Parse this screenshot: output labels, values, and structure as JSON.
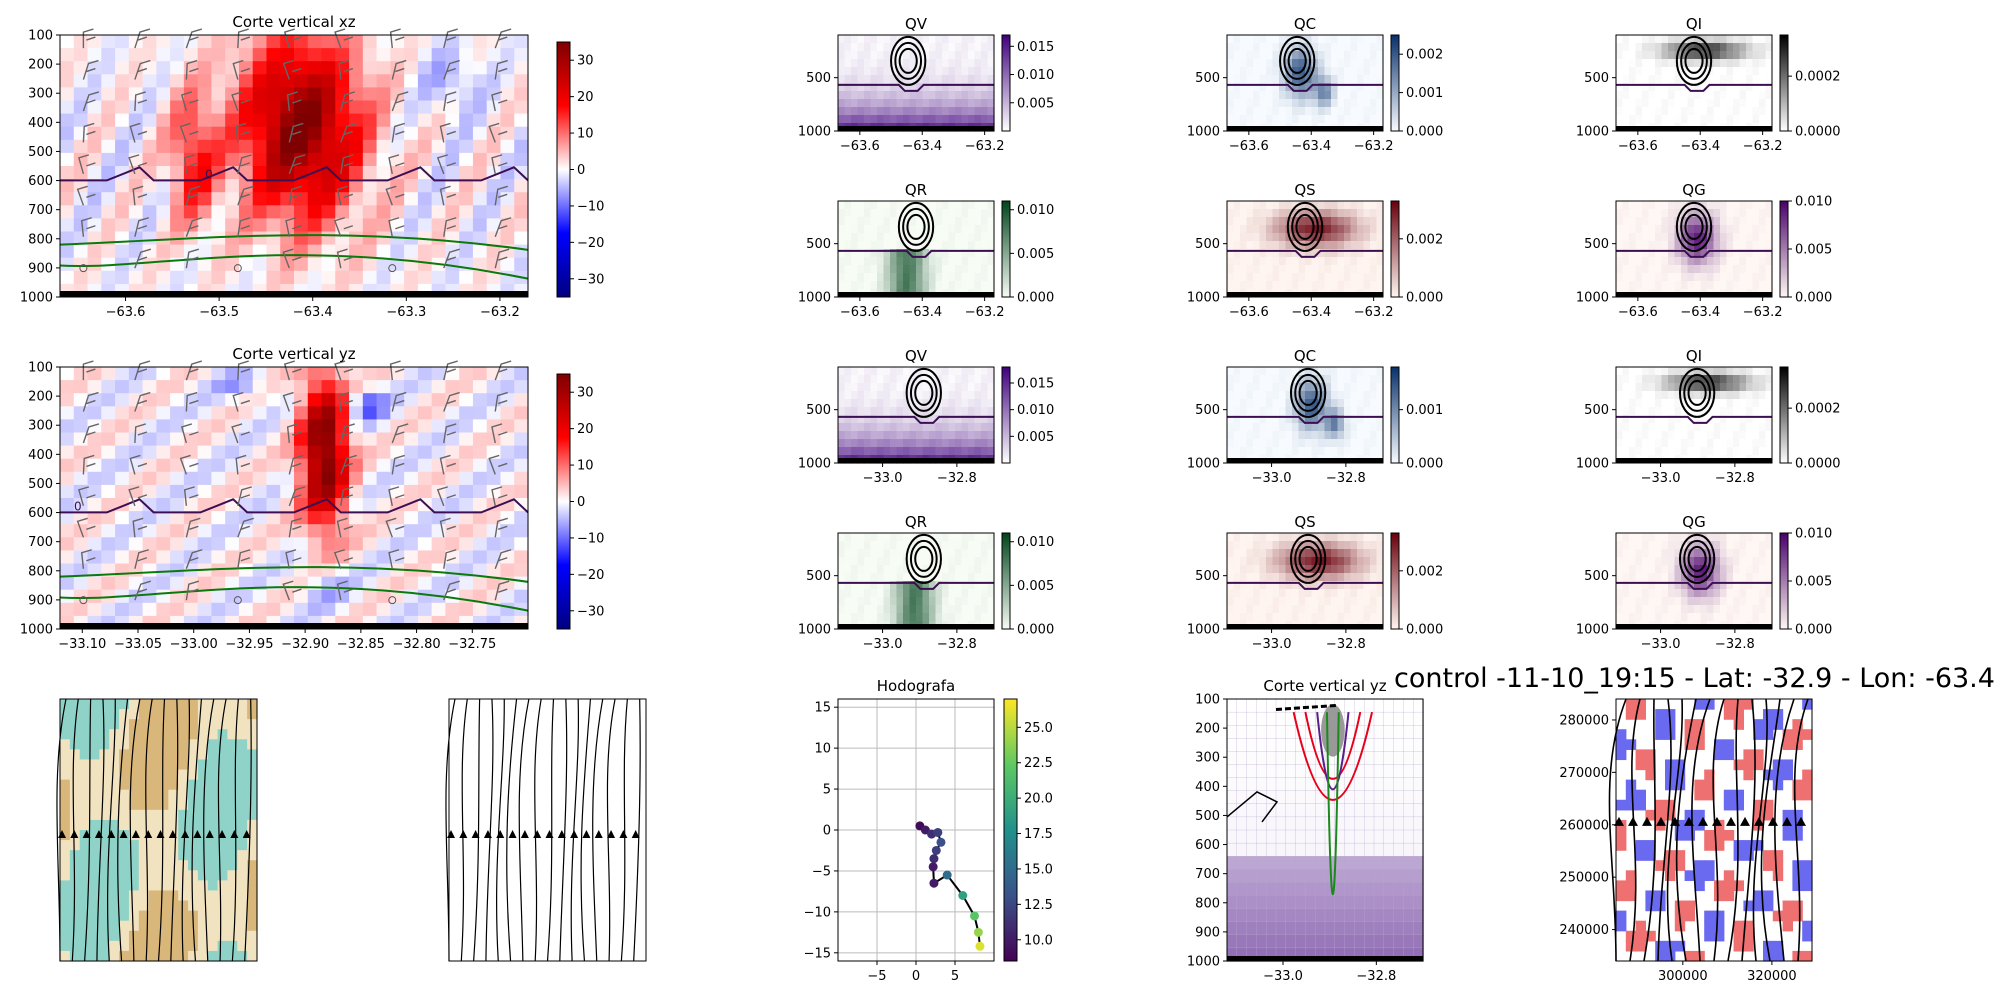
{
  "suptitle": "control -11-10_19:15 - Lat: -32.9 - Lon: -63.4",
  "chart_data": [
    {
      "id": "xz",
      "type": "heatmap",
      "title": "Corte vertical xz",
      "xlim": [
        -63.67,
        -63.17
      ],
      "ylim": [
        1000,
        100
      ],
      "xticks": [
        -63.6,
        -63.5,
        -63.4,
        -63.3,
        -63.2
      ],
      "xticklabels": [
        "−63.6",
        "−63.5",
        "−63.4",
        "−63.3",
        "−63.2"
      ],
      "yticks": [
        100,
        200,
        300,
        400,
        500,
        600,
        700,
        800,
        900,
        1000
      ],
      "cbar": {
        "min": -35,
        "max": 35,
        "ticks": [
          30,
          20,
          10,
          0,
          -10,
          -20,
          -30
        ],
        "ticklabels": [
          "30",
          "20",
          "10",
          "0",
          "−10",
          "−20",
          "−30"
        ],
        "colors": [
          "#00007f",
          "#0000ff",
          "#ffffff",
          "#ff0000",
          "#7f0000"
        ]
      },
      "contour_label": "0"
    },
    {
      "id": "yz",
      "type": "heatmap",
      "title": "Corte vertical yz",
      "xlim": [
        -33.12,
        -32.7
      ],
      "ylim": [
        1000,
        100
      ],
      "xticks": [
        -33.1,
        -33.05,
        -33.0,
        -32.95,
        -32.9,
        -32.85,
        -32.8,
        -32.75
      ],
      "xticklabels": [
        "−33.10",
        "−33.05",
        "−33.00",
        "−32.95",
        "−32.90",
        "−32.85",
        "−32.80",
        "−32.75"
      ],
      "yticks": [
        100,
        200,
        300,
        400,
        500,
        600,
        700,
        800,
        900,
        1000
      ],
      "cbar": {
        "min": -35,
        "max": 35,
        "ticks": [
          30,
          20,
          10,
          0,
          -10,
          -20,
          -30
        ],
        "ticklabels": [
          "30",
          "20",
          "10",
          "0",
          "−10",
          "−20",
          "−30"
        ],
        "colors": [
          "#00007f",
          "#0000ff",
          "#ffffff",
          "#ff0000",
          "#7f0000"
        ]
      },
      "contour_label": "0"
    },
    {
      "id": "qv1",
      "type": "heatmap",
      "title": "QV",
      "xticks": [
        -63.6,
        -63.4,
        -63.2
      ],
      "xticklabels": [
        "−63.6",
        "−63.4",
        "−63.2"
      ],
      "yticks": [
        500,
        1000
      ],
      "cbar": {
        "min": 0,
        "max": 0.017,
        "ticks": [
          0.015,
          0.01,
          0.005
        ],
        "ticklabels": [
          "0.015",
          "0.010",
          "0.005"
        ],
        "colors": [
          "#ffffff",
          "#3f007d"
        ]
      }
    },
    {
      "id": "qc1",
      "type": "heatmap",
      "title": "QC",
      "xticks": [
        -63.6,
        -63.4,
        -63.2
      ],
      "xticklabels": [
        "−63.6",
        "−63.4",
        "−63.2"
      ],
      "yticks": [
        500,
        1000
      ],
      "cbar": {
        "min": 0,
        "max": 0.0025,
        "ticks": [
          0.002,
          0.001,
          0.0
        ],
        "ticklabels": [
          "0.002",
          "0.001",
          "0.000"
        ],
        "colors": [
          "#f7fbff",
          "#08306b"
        ]
      }
    },
    {
      "id": "qi1",
      "type": "heatmap",
      "title": "QI",
      "xticks": [
        -63.6,
        -63.4,
        -63.2
      ],
      "xticklabels": [
        "−63.6",
        "−63.4",
        "−63.2"
      ],
      "yticks": [
        500,
        1000
      ],
      "cbar": {
        "min": 0,
        "max": 0.00035,
        "ticks": [
          0.0002,
          0.0
        ],
        "ticklabels": [
          "0.0002",
          "0.0000"
        ],
        "colors": [
          "#ffffff",
          "#000000"
        ]
      }
    },
    {
      "id": "qr1",
      "type": "heatmap",
      "title": "QR",
      "xticks": [
        -63.6,
        -63.4,
        -63.2
      ],
      "xticklabels": [
        "−63.6",
        "−63.4",
        "−63.2"
      ],
      "yticks": [
        500,
        1000
      ],
      "cbar": {
        "min": 0,
        "max": 0.011,
        "ticks": [
          0.01,
          0.005,
          0.0
        ],
        "ticklabels": [
          "0.010",
          "0.005",
          "0.000"
        ],
        "colors": [
          "#f7fcf5",
          "#00441b"
        ]
      }
    },
    {
      "id": "qs1",
      "type": "heatmap",
      "title": "QS",
      "xticks": [
        -63.6,
        -63.4,
        -63.2
      ],
      "xticklabels": [
        "−63.6",
        "−63.4",
        "−63.2"
      ],
      "yticks": [
        500,
        1000
      ],
      "cbar": {
        "min": 0,
        "max": 0.0033,
        "ticks": [
          0.002,
          0.0
        ],
        "ticklabels": [
          "0.002",
          "0.000"
        ],
        "colors": [
          "#fff5f0",
          "#67000d"
        ]
      }
    },
    {
      "id": "qg1",
      "type": "heatmap",
      "title": "QG",
      "xticks": [
        -63.6,
        -63.4,
        -63.2
      ],
      "xticklabels": [
        "−63.6",
        "−63.4",
        "−63.2"
      ],
      "yticks": [
        500,
        1000
      ],
      "cbar": {
        "min": 0,
        "max": 0.01,
        "ticks": [
          0.01,
          0.005,
          0.0
        ],
        "ticklabels": [
          "0.010",
          "0.005",
          "0.000"
        ],
        "colors": [
          "#fff7f3",
          "#49006a"
        ]
      }
    },
    {
      "id": "qv2",
      "type": "heatmap",
      "title": "QV",
      "xticks": [
        -33.0,
        -32.8
      ],
      "xticklabels": [
        "−33.0",
        "−32.8"
      ],
      "yticks": [
        500,
        1000
      ],
      "cbar": {
        "min": 0,
        "max": 0.018,
        "ticks": [
          0.015,
          0.01,
          0.005
        ],
        "ticklabels": [
          "0.015",
          "0.010",
          "0.005"
        ],
        "colors": [
          "#ffffff",
          "#3f007d"
        ]
      }
    },
    {
      "id": "qc2",
      "type": "heatmap",
      "title": "QC",
      "xticks": [
        -33.0,
        -32.8
      ],
      "xticklabels": [
        "−33.0",
        "−32.8"
      ],
      "yticks": [
        500,
        1000
      ],
      "cbar": {
        "min": 0,
        "max": 0.0018,
        "ticks": [
          0.001,
          0.0
        ],
        "ticklabels": [
          "0.001",
          "0.000"
        ],
        "colors": [
          "#f7fbff",
          "#08306b"
        ]
      }
    },
    {
      "id": "qi2",
      "type": "heatmap",
      "title": "QI",
      "xticks": [
        -33.0,
        -32.8
      ],
      "xticklabels": [
        "−33.0",
        "−32.8"
      ],
      "yticks": [
        500,
        1000
      ],
      "cbar": {
        "min": 0,
        "max": 0.00035,
        "ticks": [
          0.0002,
          0.0
        ],
        "ticklabels": [
          "0.0002",
          "0.0000"
        ],
        "colors": [
          "#ffffff",
          "#000000"
        ]
      }
    },
    {
      "id": "qr2",
      "type": "heatmap",
      "title": "QR",
      "xticks": [
        -33.0,
        -32.8
      ],
      "xticklabels": [
        "−33.0",
        "−32.8"
      ],
      "yticks": [
        500,
        1000
      ],
      "cbar": {
        "min": 0,
        "max": 0.011,
        "ticks": [
          0.01,
          0.005,
          0.0
        ],
        "ticklabels": [
          "0.010",
          "0.005",
          "0.000"
        ],
        "colors": [
          "#f7fcf5",
          "#00441b"
        ]
      }
    },
    {
      "id": "qs2",
      "type": "heatmap",
      "title": "QS",
      "xticks": [
        -33.0,
        -32.8
      ],
      "xticklabels": [
        "−33.0",
        "−32.8"
      ],
      "yticks": [
        500,
        1000
      ],
      "cbar": {
        "min": 0,
        "max": 0.0033,
        "ticks": [
          0.002,
          0.0
        ],
        "ticklabels": [
          "0.002",
          "0.000"
        ],
        "colors": [
          "#fff5f0",
          "#67000d"
        ]
      }
    },
    {
      "id": "qg2",
      "type": "heatmap",
      "title": "QG",
      "xticks": [
        -33.0,
        -32.8
      ],
      "xticklabels": [
        "−33.0",
        "−32.8"
      ],
      "yticks": [
        500,
        1000
      ],
      "cbar": {
        "min": 0,
        "max": 0.01,
        "ticks": [
          0.01,
          0.005,
          0.0
        ],
        "ticklabels": [
          "0.010",
          "0.005",
          "0.000"
        ],
        "colors": [
          "#fff7f3",
          "#49006a"
        ]
      }
    },
    {
      "id": "hodo",
      "type": "scatter",
      "title": "Hodografa",
      "xlim": [
        -10,
        10
      ],
      "ylim": [
        -16,
        16
      ],
      "xticks": [
        -5,
        0,
        5
      ],
      "xticklabels": [
        "−5",
        "0",
        "5"
      ],
      "yticks": [
        15,
        10,
        5,
        0,
        -5,
        -10,
        -15
      ],
      "yticklabels": [
        "15",
        "10",
        "5",
        "0",
        "−5",
        "−10",
        "−15"
      ],
      "grid": true,
      "u": [
        0.5,
        1.2,
        2.0,
        2.8,
        3.2,
        2.6,
        2.3,
        2.2,
        2.3,
        4.0,
        6.0,
        7.5,
        8.0,
        8.2
      ],
      "v": [
        0.5,
        0.0,
        -0.5,
        -0.3,
        -1.5,
        -2.5,
        -3.5,
        -4.5,
        -6.5,
        -5.5,
        -8.0,
        -10.5,
        -12.5,
        -14.2
      ],
      "speed": [
        9,
        10,
        11,
        12,
        13,
        12,
        11,
        10,
        10,
        15,
        19,
        22,
        24,
        26
      ],
      "cbar": {
        "min": 8.5,
        "max": 27,
        "ticks": [
          25.0,
          22.5,
          20.0,
          17.5,
          15.0,
          12.5,
          10.0
        ],
        "ticklabels": [
          "25.0",
          "22.5",
          "20.0",
          "17.5",
          "15.0",
          "12.5",
          "10.0"
        ],
        "colors": [
          "#440154",
          "#3b528b",
          "#21918c",
          "#5ec962",
          "#fde725"
        ]
      }
    },
    {
      "id": "yz3",
      "type": "heatmap",
      "title": "Corte vertical yz",
      "xticks": [
        -33.0,
        -32.8
      ],
      "xticklabels": [
        "−33.0",
        "−32.8"
      ],
      "yticks": [
        100,
        200,
        300,
        400,
        500,
        600,
        700,
        800,
        900,
        1000
      ]
    },
    {
      "id": "map",
      "type": "heatmap",
      "xticks": [
        300000,
        320000
      ],
      "xticklabels": [
        "300000",
        "320000"
      ],
      "yticks": [
        280000,
        270000,
        260000,
        250000,
        240000
      ],
      "yticklabels": [
        "280000",
        "270000",
        "260000",
        "250000",
        "240000"
      ]
    }
  ]
}
